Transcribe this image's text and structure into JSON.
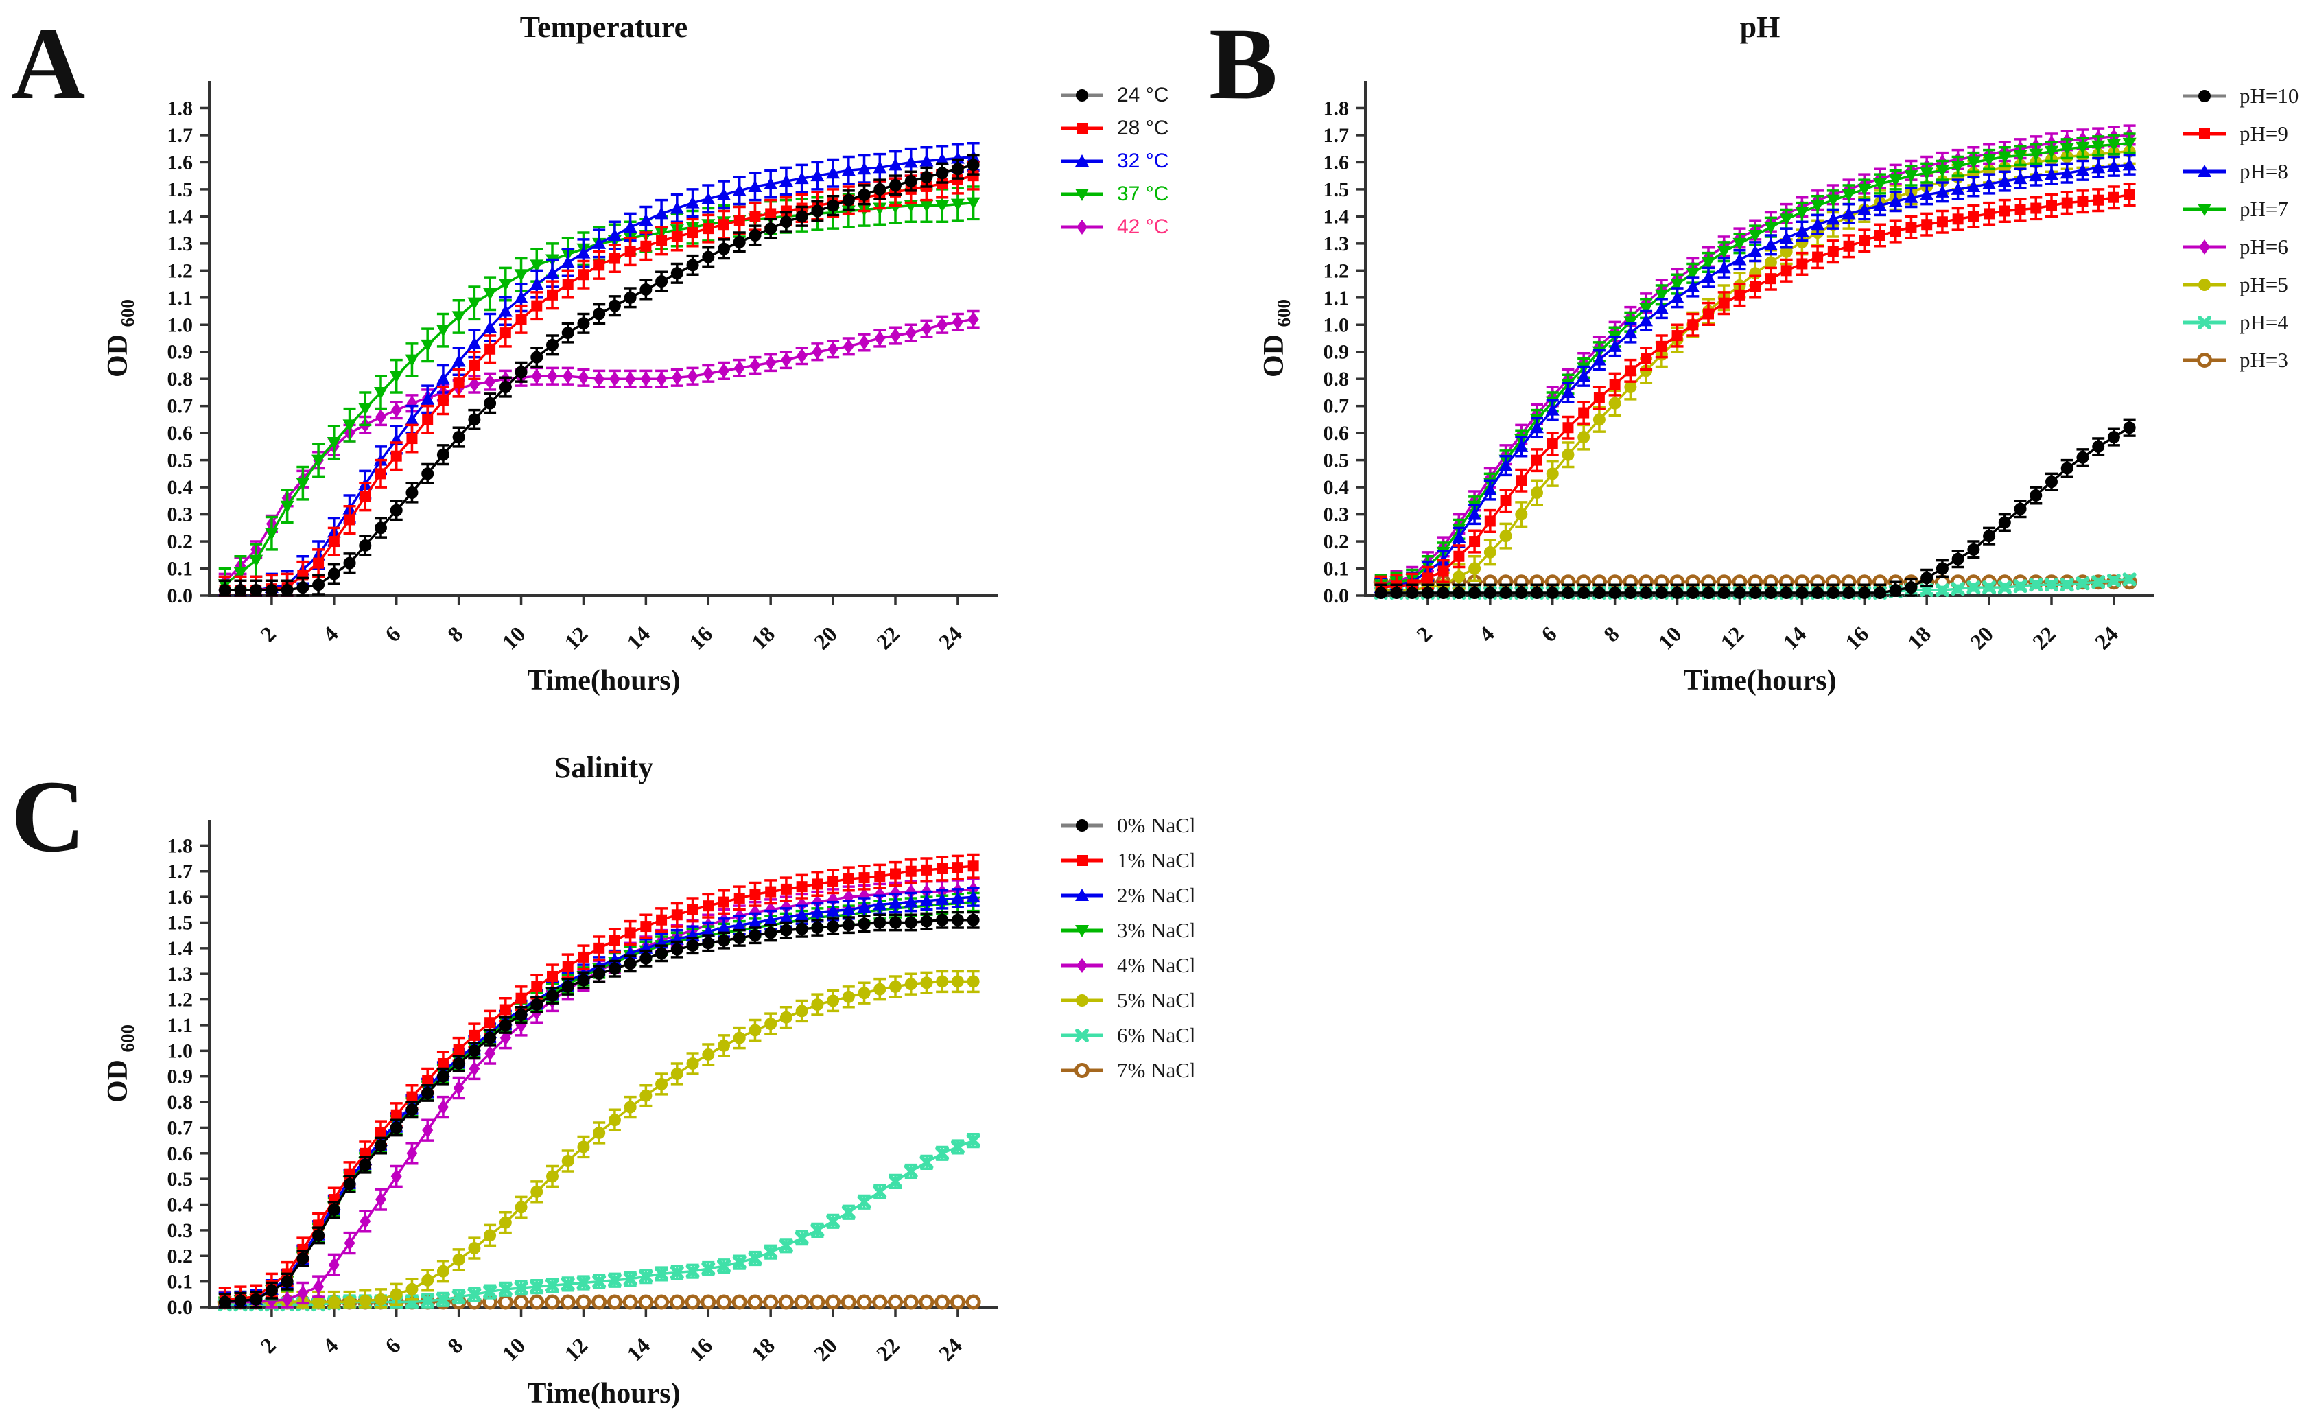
{
  "panels": [
    {
      "letter": "A",
      "title": "Temperature",
      "xlabel": "Time(hours)",
      "ylabel": "OD",
      "ylabel_sub": "600"
    },
    {
      "letter": "B",
      "title": "pH",
      "xlabel": "Time(hours)",
      "ylabel": "OD",
      "ylabel_sub": "600"
    },
    {
      "letter": "C",
      "title": "Salinity",
      "xlabel": "Time(hours)",
      "ylabel": "OD",
      "ylabel_sub": "600"
    }
  ],
  "colors": {
    "black": "#000000",
    "red": "#FF0000",
    "blue": "#0000EE",
    "green": "#00B800",
    "magenta": "#C000C0",
    "olive": "#BDBD00",
    "turquoise": "#40E0A8",
    "brown": "#A5671E",
    "legend_line_gray": "#808080",
    "axis": "#333333",
    "pink_text": "#FF3380",
    "blue_text": "#0000EE",
    "green_text": "#00B800"
  },
  "chart_data": [
    {
      "type": "line",
      "panel": "A",
      "title": "Temperature",
      "xlabel": "Time(hours)",
      "ylabel": "OD",
      "ylabel_sub": "600",
      "xlim": [
        0,
        25.3
      ],
      "ylim": [
        0,
        1.9
      ],
      "x_ticks": [
        2,
        4,
        6,
        8,
        10,
        12,
        14,
        16,
        18,
        20,
        22,
        24
      ],
      "y_ticks": [
        0.0,
        0.1,
        0.2,
        0.3,
        0.4,
        0.5,
        0.6,
        0.7,
        0.8,
        0.9,
        1.0,
        1.1,
        1.2,
        1.3,
        1.4,
        1.5,
        1.6,
        1.7,
        1.8
      ],
      "grid": false,
      "legend_position": "right",
      "x": [
        0.5,
        1.5,
        2.5,
        3.5,
        4.5,
        5.5,
        6.5,
        7.5,
        8.5,
        9.5,
        10.5,
        11.5,
        12.5,
        13.5,
        14.5,
        15.5,
        16.5,
        17.5,
        18.5,
        19.5,
        20.5,
        21.5,
        22.5,
        23.5,
        24.5
      ],
      "series": [
        {
          "name": "24 °C",
          "color": "#000000",
          "label_color": "#1a1a1a",
          "legend_line": "#808080",
          "marker": "circle",
          "err": 0.035,
          "values": [
            0.02,
            0.02,
            0.02,
            0.04,
            0.12,
            0.25,
            0.38,
            0.52,
            0.65,
            0.77,
            0.88,
            0.97,
            1.04,
            1.1,
            1.16,
            1.22,
            1.28,
            1.33,
            1.38,
            1.42,
            1.46,
            1.5,
            1.53,
            1.56,
            1.59
          ]
        },
        {
          "name": "28 °C",
          "color": "#FF0000",
          "label_color": "#1a1a1a",
          "legend_line": "#FF0000",
          "marker": "square",
          "err": 0.05,
          "values": [
            0.02,
            0.02,
            0.03,
            0.12,
            0.28,
            0.45,
            0.58,
            0.72,
            0.85,
            0.97,
            1.07,
            1.15,
            1.22,
            1.27,
            1.31,
            1.34,
            1.37,
            1.4,
            1.42,
            1.44,
            1.46,
            1.48,
            1.5,
            1.52,
            1.55
          ]
        },
        {
          "name": "32 °C",
          "color": "#0000EE",
          "label_color": "#0000EE",
          "legend_line": "#0000EE",
          "marker": "triangle-up",
          "err": 0.05,
          "values": [
            0.02,
            0.02,
            0.04,
            0.15,
            0.32,
            0.5,
            0.65,
            0.8,
            0.93,
            1.05,
            1.15,
            1.23,
            1.3,
            1.36,
            1.41,
            1.45,
            1.48,
            1.51,
            1.53,
            1.55,
            1.57,
            1.58,
            1.6,
            1.61,
            1.62
          ]
        },
        {
          "name": "37 °C",
          "color": "#00B800",
          "label_color": "#00B800",
          "legend_line": "#00B800",
          "marker": "triangle-down",
          "err": 0.06,
          "values": [
            0.04,
            0.13,
            0.33,
            0.5,
            0.63,
            0.75,
            0.87,
            0.98,
            1.08,
            1.15,
            1.22,
            1.26,
            1.3,
            1.32,
            1.34,
            1.36,
            1.38,
            1.39,
            1.4,
            1.41,
            1.42,
            1.43,
            1.44,
            1.44,
            1.45
          ]
        },
        {
          "name": "42 °C",
          "color": "#C000C0",
          "label_color": "#FF3380",
          "legend_line": "#C000C0",
          "marker": "diamond",
          "err": 0.03,
          "values": [
            0.05,
            0.17,
            0.36,
            0.5,
            0.6,
            0.66,
            0.71,
            0.75,
            0.78,
            0.8,
            0.81,
            0.81,
            0.8,
            0.8,
            0.8,
            0.81,
            0.83,
            0.85,
            0.87,
            0.9,
            0.92,
            0.95,
            0.97,
            1.0,
            1.02
          ]
        }
      ]
    },
    {
      "type": "line",
      "panel": "B",
      "title": "pH",
      "xlabel": "Time(hours)",
      "ylabel": "OD",
      "ylabel_sub": "600",
      "xlim": [
        0,
        25.3
      ],
      "ylim": [
        0,
        1.9
      ],
      "x_ticks": [
        2,
        4,
        6,
        8,
        10,
        12,
        14,
        16,
        18,
        20,
        22,
        24
      ],
      "y_ticks": [
        0.0,
        0.1,
        0.2,
        0.3,
        0.4,
        0.5,
        0.6,
        0.7,
        0.8,
        0.9,
        1.0,
        1.1,
        1.2,
        1.3,
        1.4,
        1.5,
        1.6,
        1.7,
        1.8
      ],
      "grid": false,
      "legend_position": "right",
      "x": [
        0.5,
        1.5,
        2.5,
        3.5,
        4.5,
        5.5,
        6.5,
        7.5,
        8.5,
        9.5,
        10.5,
        11.5,
        12.5,
        13.5,
        14.5,
        15.5,
        16.5,
        17.5,
        18.5,
        19.5,
        20.5,
        21.5,
        22.5,
        23.5,
        24.5
      ],
      "series": [
        {
          "name": "pH=10",
          "color": "#000000",
          "label_color": "#1a1a1a",
          "legend_line": "#808080",
          "marker": "circle",
          "err": 0.03,
          "values": [
            0.01,
            0.01,
            0.01,
            0.01,
            0.01,
            0.01,
            0.01,
            0.01,
            0.01,
            0.01,
            0.01,
            0.01,
            0.01,
            0.01,
            0.01,
            0.01,
            0.01,
            0.03,
            0.1,
            0.17,
            0.27,
            0.37,
            0.47,
            0.55,
            0.62
          ]
        },
        {
          "name": "pH=9",
          "color": "#FF0000",
          "label_color": "#1a1a1a",
          "legend_line": "#FF0000",
          "marker": "square",
          "err": 0.04,
          "values": [
            0.03,
            0.04,
            0.09,
            0.2,
            0.35,
            0.5,
            0.62,
            0.73,
            0.83,
            0.92,
            1.0,
            1.08,
            1.14,
            1.2,
            1.25,
            1.29,
            1.33,
            1.36,
            1.38,
            1.4,
            1.42,
            1.43,
            1.45,
            1.46,
            1.48
          ]
        },
        {
          "name": "pH=8",
          "color": "#0000EE",
          "label_color": "#1a1a1a",
          "legend_line": "#0000EE",
          "marker": "triangle-up",
          "err": 0.035,
          "values": [
            0.03,
            0.05,
            0.13,
            0.3,
            0.48,
            0.62,
            0.75,
            0.87,
            0.97,
            1.06,
            1.14,
            1.21,
            1.27,
            1.32,
            1.37,
            1.41,
            1.44,
            1.47,
            1.49,
            1.51,
            1.53,
            1.55,
            1.56,
            1.58,
            1.59
          ]
        },
        {
          "name": "pH=7",
          "color": "#00B800",
          "label_color": "#1a1a1a",
          "legend_line": "#00B800",
          "marker": "triangle-down",
          "err": 0.035,
          "values": [
            0.04,
            0.06,
            0.16,
            0.33,
            0.5,
            0.65,
            0.78,
            0.9,
            1.01,
            1.11,
            1.19,
            1.27,
            1.33,
            1.39,
            1.44,
            1.48,
            1.52,
            1.55,
            1.57,
            1.6,
            1.62,
            1.63,
            1.65,
            1.66,
            1.67
          ]
        },
        {
          "name": "pH=6",
          "color": "#C000C0",
          "label_color": "#1a1a1a",
          "legend_line": "#C000C0",
          "marker": "diamond",
          "err": 0.035,
          "values": [
            0.04,
            0.07,
            0.18,
            0.35,
            0.52,
            0.67,
            0.8,
            0.92,
            1.03,
            1.13,
            1.21,
            1.29,
            1.35,
            1.41,
            1.46,
            1.5,
            1.54,
            1.57,
            1.6,
            1.62,
            1.64,
            1.66,
            1.68,
            1.69,
            1.7
          ]
        },
        {
          "name": "pH=5",
          "color": "#BDBD00",
          "label_color": "#1a1a1a",
          "legend_line": "#BDBD00",
          "marker": "circle",
          "err": 0.045,
          "values": [
            0.02,
            0.02,
            0.04,
            0.1,
            0.22,
            0.38,
            0.52,
            0.65,
            0.77,
            0.89,
            1.0,
            1.1,
            1.19,
            1.27,
            1.34,
            1.4,
            1.45,
            1.49,
            1.53,
            1.56,
            1.58,
            1.6,
            1.62,
            1.63,
            1.64
          ]
        },
        {
          "name": "pH=4",
          "color": "#40E0A8",
          "label_color": "#1a1a1a",
          "legend_line": "#40E0A8",
          "marker": "x",
          "err": 0.012,
          "values": [
            0.01,
            0.01,
            0.01,
            0.01,
            0.01,
            0.01,
            0.01,
            0.01,
            0.01,
            0.01,
            0.01,
            0.01,
            0.01,
            0.01,
            0.01,
            0.01,
            0.01,
            0.02,
            0.02,
            0.03,
            0.03,
            0.04,
            0.04,
            0.05,
            0.06
          ]
        },
        {
          "name": "pH=3",
          "color": "#A5671E",
          "label_color": "#1a1a1a",
          "legend_line": "#A5671E",
          "marker": "open-circle",
          "err": 0.012,
          "values": [
            0.05,
            0.05,
            0.05,
            0.05,
            0.05,
            0.05,
            0.05,
            0.05,
            0.05,
            0.05,
            0.05,
            0.05,
            0.05,
            0.05,
            0.05,
            0.05,
            0.05,
            0.05,
            0.05,
            0.05,
            0.05,
            0.05,
            0.05,
            0.05,
            0.05
          ]
        }
      ]
    },
    {
      "type": "line",
      "panel": "C",
      "title": "Salinity",
      "xlabel": "Time(hours)",
      "ylabel": "OD",
      "ylabel_sub": "600",
      "xlim": [
        0,
        25.3
      ],
      "ylim": [
        0,
        1.9
      ],
      "x_ticks": [
        2,
        4,
        6,
        8,
        10,
        12,
        14,
        16,
        18,
        20,
        22,
        24
      ],
      "y_ticks": [
        0.0,
        0.1,
        0.2,
        0.3,
        0.4,
        0.5,
        0.6,
        0.7,
        0.8,
        0.9,
        1.0,
        1.1,
        1.2,
        1.3,
        1.4,
        1.5,
        1.6,
        1.7,
        1.8
      ],
      "grid": false,
      "legend_position": "right",
      "x": [
        0.5,
        1.5,
        2.5,
        3.5,
        4.5,
        5.5,
        6.5,
        7.5,
        8.5,
        9.5,
        10.5,
        11.5,
        12.5,
        13.5,
        14.5,
        15.5,
        16.5,
        17.5,
        18.5,
        19.5,
        20.5,
        21.5,
        22.5,
        23.5,
        24.5
      ],
      "series": [
        {
          "name": "0% NaCl",
          "color": "#000000",
          "label_color": "#1a1a1a",
          "legend_line": "#808080",
          "marker": "circle",
          "err": 0.03,
          "values": [
            0.02,
            0.03,
            0.1,
            0.28,
            0.48,
            0.63,
            0.77,
            0.9,
            1.0,
            1.1,
            1.18,
            1.25,
            1.3,
            1.34,
            1.38,
            1.41,
            1.43,
            1.45,
            1.47,
            1.48,
            1.49,
            1.5,
            1.5,
            1.51,
            1.51
          ]
        },
        {
          "name": "1% NaCl",
          "color": "#FF0000",
          "label_color": "#1a1a1a",
          "legend_line": "#FF0000",
          "marker": "square",
          "err": 0.045,
          "values": [
            0.03,
            0.04,
            0.13,
            0.32,
            0.52,
            0.68,
            0.82,
            0.95,
            1.06,
            1.16,
            1.25,
            1.33,
            1.4,
            1.46,
            1.51,
            1.55,
            1.58,
            1.61,
            1.63,
            1.65,
            1.67,
            1.68,
            1.7,
            1.71,
            1.72
          ]
        },
        {
          "name": "2% NaCl",
          "color": "#0000EE",
          "label_color": "#1a1a1a",
          "legend_line": "#0000EE",
          "marker": "triangle-up",
          "err": 0.035,
          "values": [
            0.02,
            0.03,
            0.11,
            0.3,
            0.5,
            0.65,
            0.79,
            0.92,
            1.02,
            1.12,
            1.2,
            1.27,
            1.33,
            1.38,
            1.42,
            1.45,
            1.48,
            1.5,
            1.52,
            1.54,
            1.55,
            1.57,
            1.58,
            1.59,
            1.6
          ]
        },
        {
          "name": "3% NaCl",
          "color": "#00B800",
          "label_color": "#1a1a1a",
          "legend_line": "#00B800",
          "marker": "triangle-down",
          "err": 0.035,
          "values": [
            0.02,
            0.03,
            0.1,
            0.29,
            0.49,
            0.64,
            0.78,
            0.91,
            1.01,
            1.11,
            1.19,
            1.26,
            1.32,
            1.37,
            1.41,
            1.44,
            1.46,
            1.48,
            1.5,
            1.52,
            1.53,
            1.55,
            1.56,
            1.57,
            1.58
          ]
        },
        {
          "name": "4% NaCl",
          "color": "#C000C0",
          "label_color": "#1a1a1a",
          "legend_line": "#C000C0",
          "marker": "diamond",
          "err": 0.04,
          "values": [
            0.02,
            0.02,
            0.03,
            0.08,
            0.25,
            0.42,
            0.6,
            0.78,
            0.93,
            1.05,
            1.15,
            1.24,
            1.31,
            1.38,
            1.43,
            1.47,
            1.51,
            1.54,
            1.56,
            1.58,
            1.6,
            1.61,
            1.62,
            1.62,
            1.63
          ]
        },
        {
          "name": "5% NaCl",
          "color": "#BDBD00",
          "label_color": "#1a1a1a",
          "legend_line": "#BDBD00",
          "marker": "circle",
          "err": 0.04,
          "values": [
            0.02,
            0.02,
            0.02,
            0.02,
            0.02,
            0.03,
            0.07,
            0.14,
            0.23,
            0.33,
            0.45,
            0.57,
            0.68,
            0.78,
            0.87,
            0.95,
            1.02,
            1.08,
            1.13,
            1.18,
            1.21,
            1.24,
            1.26,
            1.27,
            1.27
          ]
        },
        {
          "name": "6% NaCl",
          "color": "#40E0A8",
          "label_color": "#1a1a1a",
          "legend_line": "#40E0A8",
          "marker": "x",
          "err": 0.025,
          "values": [
            0.01,
            0.01,
            0.01,
            0.01,
            0.02,
            0.02,
            0.02,
            0.03,
            0.05,
            0.07,
            0.08,
            0.09,
            0.1,
            0.11,
            0.13,
            0.14,
            0.16,
            0.19,
            0.24,
            0.3,
            0.37,
            0.45,
            0.53,
            0.6,
            0.65
          ]
        },
        {
          "name": "7% NaCl",
          "color": "#A5671E",
          "label_color": "#1a1a1a",
          "legend_line": "#A5671E",
          "marker": "open-circle",
          "err": 0.012,
          "values": [
            0.02,
            0.02,
            0.02,
            0.02,
            0.02,
            0.02,
            0.02,
            0.02,
            0.02,
            0.02,
            0.02,
            0.02,
            0.02,
            0.02,
            0.02,
            0.02,
            0.02,
            0.02,
            0.02,
            0.02,
            0.02,
            0.02,
            0.02,
            0.02,
            0.02
          ]
        }
      ]
    }
  ]
}
